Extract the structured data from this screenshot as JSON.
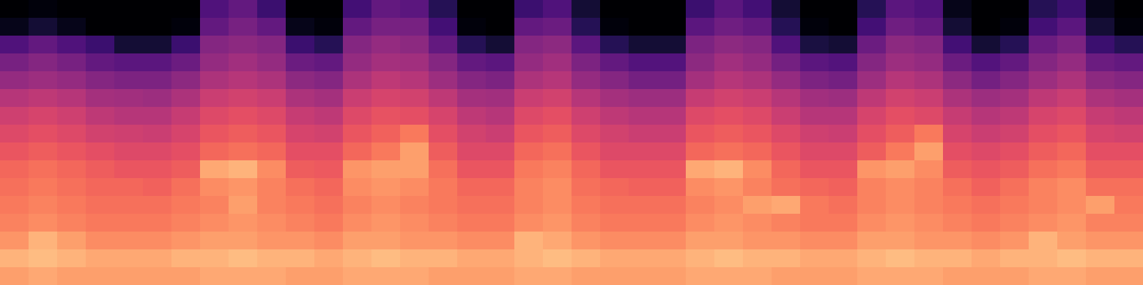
{
  "chart_data": {
    "type": "heatmap",
    "color": "magma",
    "tick_labels": false,
    "color_range": [
      0,
      1
    ],
    "cells": [
      [
        0,
        0.02,
        0,
        0,
        0,
        0,
        0,
        0.25,
        0.3,
        0.2,
        0,
        0,
        0.22,
        0.3,
        0.28,
        0.15,
        0,
        0,
        0.2,
        0.25,
        0.1,
        0,
        0,
        0,
        0.2,
        0.28,
        0.22,
        0.1,
        0,
        0,
        0.15,
        0.28,
        0.25,
        0.05,
        0,
        0,
        0.15,
        0.2,
        0.05,
        0
      ],
      [
        0.05,
        0.1,
        0.05,
        0,
        0,
        0,
        0.02,
        0.3,
        0.35,
        0.3,
        0.05,
        0.02,
        0.3,
        0.35,
        0.35,
        0.22,
        0.02,
        0,
        0.3,
        0.32,
        0.15,
        0.02,
        0,
        0,
        0.28,
        0.33,
        0.3,
        0.15,
        0.02,
        0,
        0.22,
        0.33,
        0.3,
        0.1,
        0,
        0.02,
        0.22,
        0.28,
        0.1,
        0.02
      ],
      [
        0.25,
        0.3,
        0.25,
        0.2,
        0.1,
        0.1,
        0.2,
        0.38,
        0.4,
        0.38,
        0.2,
        0.15,
        0.38,
        0.42,
        0.4,
        0.3,
        0.15,
        0.1,
        0.38,
        0.4,
        0.28,
        0.15,
        0.1,
        0.1,
        0.36,
        0.4,
        0.38,
        0.25,
        0.12,
        0.1,
        0.32,
        0.4,
        0.38,
        0.22,
        0.1,
        0.15,
        0.32,
        0.36,
        0.2,
        0.15
      ],
      [
        0.35,
        0.38,
        0.35,
        0.3,
        0.28,
        0.28,
        0.32,
        0.42,
        0.45,
        0.42,
        0.32,
        0.3,
        0.42,
        0.46,
        0.45,
        0.38,
        0.3,
        0.28,
        0.42,
        0.45,
        0.36,
        0.3,
        0.26,
        0.26,
        0.4,
        0.45,
        0.42,
        0.34,
        0.28,
        0.26,
        0.38,
        0.44,
        0.42,
        0.32,
        0.26,
        0.3,
        0.38,
        0.42,
        0.32,
        0.3
      ],
      [
        0.42,
        0.44,
        0.42,
        0.38,
        0.36,
        0.36,
        0.4,
        0.48,
        0.5,
        0.48,
        0.4,
        0.38,
        0.48,
        0.52,
        0.5,
        0.44,
        0.38,
        0.36,
        0.48,
        0.5,
        0.42,
        0.38,
        0.34,
        0.34,
        0.46,
        0.5,
        0.48,
        0.42,
        0.36,
        0.34,
        0.44,
        0.5,
        0.48,
        0.4,
        0.34,
        0.38,
        0.44,
        0.48,
        0.4,
        0.38
      ],
      [
        0.5,
        0.52,
        0.5,
        0.46,
        0.45,
        0.44,
        0.48,
        0.55,
        0.57,
        0.55,
        0.48,
        0.46,
        0.55,
        0.58,
        0.57,
        0.52,
        0.46,
        0.45,
        0.55,
        0.57,
        0.5,
        0.46,
        0.44,
        0.44,
        0.54,
        0.57,
        0.55,
        0.5,
        0.45,
        0.44,
        0.52,
        0.57,
        0.55,
        0.48,
        0.44,
        0.46,
        0.52,
        0.55,
        0.48,
        0.46
      ],
      [
        0.56,
        0.58,
        0.56,
        0.52,
        0.5,
        0.5,
        0.54,
        0.6,
        0.62,
        0.6,
        0.54,
        0.52,
        0.6,
        0.63,
        0.62,
        0.58,
        0.52,
        0.5,
        0.6,
        0.62,
        0.56,
        0.52,
        0.5,
        0.5,
        0.6,
        0.62,
        0.6,
        0.55,
        0.5,
        0.5,
        0.58,
        0.62,
        0.6,
        0.54,
        0.5,
        0.52,
        0.58,
        0.6,
        0.54,
        0.52
      ],
      [
        0.6,
        0.62,
        0.6,
        0.57,
        0.56,
        0.55,
        0.58,
        0.64,
        0.66,
        0.64,
        0.58,
        0.57,
        0.64,
        0.67,
        0.72,
        0.62,
        0.57,
        0.55,
        0.64,
        0.66,
        0.6,
        0.57,
        0.55,
        0.55,
        0.64,
        0.66,
        0.64,
        0.6,
        0.56,
        0.55,
        0.62,
        0.66,
        0.72,
        0.58,
        0.55,
        0.57,
        0.62,
        0.64,
        0.58,
        0.57
      ],
      [
        0.64,
        0.66,
        0.64,
        0.62,
        0.6,
        0.6,
        0.62,
        0.68,
        0.7,
        0.68,
        0.62,
        0.62,
        0.68,
        0.72,
        0.8,
        0.66,
        0.6,
        0.6,
        0.68,
        0.7,
        0.64,
        0.6,
        0.6,
        0.6,
        0.68,
        0.7,
        0.68,
        0.64,
        0.6,
        0.6,
        0.66,
        0.72,
        0.8,
        0.62,
        0.6,
        0.62,
        0.66,
        0.68,
        0.62,
        0.62
      ],
      [
        0.68,
        0.7,
        0.68,
        0.66,
        0.64,
        0.64,
        0.66,
        0.82,
        0.84,
        0.76,
        0.66,
        0.65,
        0.78,
        0.8,
        0.8,
        0.7,
        0.64,
        0.64,
        0.72,
        0.74,
        0.68,
        0.64,
        0.64,
        0.64,
        0.82,
        0.84,
        0.76,
        0.68,
        0.64,
        0.64,
        0.78,
        0.8,
        0.76,
        0.66,
        0.64,
        0.66,
        0.7,
        0.72,
        0.66,
        0.66
      ],
      [
        0.7,
        0.72,
        0.7,
        0.68,
        0.68,
        0.67,
        0.7,
        0.76,
        0.78,
        0.74,
        0.7,
        0.68,
        0.76,
        0.78,
        0.76,
        0.72,
        0.68,
        0.68,
        0.74,
        0.76,
        0.7,
        0.68,
        0.67,
        0.67,
        0.76,
        0.78,
        0.74,
        0.7,
        0.68,
        0.67,
        0.74,
        0.76,
        0.74,
        0.7,
        0.67,
        0.7,
        0.74,
        0.76,
        0.7,
        0.7
      ],
      [
        0.72,
        0.74,
        0.72,
        0.7,
        0.7,
        0.7,
        0.72,
        0.74,
        0.8,
        0.74,
        0.72,
        0.7,
        0.74,
        0.76,
        0.74,
        0.72,
        0.7,
        0.7,
        0.74,
        0.76,
        0.72,
        0.7,
        0.7,
        0.7,
        0.74,
        0.76,
        0.8,
        0.82,
        0.72,
        0.7,
        0.74,
        0.76,
        0.74,
        0.72,
        0.7,
        0.72,
        0.74,
        0.76,
        0.8,
        0.72
      ],
      [
        0.74,
        0.76,
        0.74,
        0.72,
        0.72,
        0.72,
        0.74,
        0.76,
        0.78,
        0.76,
        0.74,
        0.72,
        0.76,
        0.78,
        0.76,
        0.74,
        0.72,
        0.72,
        0.76,
        0.78,
        0.74,
        0.72,
        0.72,
        0.72,
        0.76,
        0.78,
        0.76,
        0.74,
        0.72,
        0.72,
        0.76,
        0.78,
        0.76,
        0.74,
        0.72,
        0.74,
        0.76,
        0.78,
        0.74,
        0.74
      ],
      [
        0.78,
        0.84,
        0.8,
        0.76,
        0.76,
        0.76,
        0.78,
        0.8,
        0.8,
        0.78,
        0.78,
        0.76,
        0.8,
        0.8,
        0.78,
        0.78,
        0.76,
        0.76,
        0.84,
        0.82,
        0.78,
        0.76,
        0.76,
        0.76,
        0.8,
        0.8,
        0.78,
        0.78,
        0.76,
        0.76,
        0.8,
        0.8,
        0.78,
        0.78,
        0.76,
        0.78,
        0.84,
        0.8,
        0.78,
        0.78
      ],
      [
        0.84,
        0.86,
        0.84,
        0.82,
        0.82,
        0.82,
        0.84,
        0.84,
        0.86,
        0.84,
        0.84,
        0.82,
        0.84,
        0.86,
        0.84,
        0.84,
        0.82,
        0.82,
        0.84,
        0.86,
        0.84,
        0.82,
        0.82,
        0.82,
        0.84,
        0.86,
        0.84,
        0.84,
        0.82,
        0.82,
        0.84,
        0.86,
        0.84,
        0.84,
        0.82,
        0.84,
        0.84,
        0.86,
        0.84,
        0.84
      ],
      [
        0.8,
        0.82,
        0.8,
        0.8,
        0.8,
        0.8,
        0.8,
        0.82,
        0.82,
        0.82,
        0.8,
        0.8,
        0.82,
        0.82,
        0.82,
        0.8,
        0.8,
        0.8,
        0.82,
        0.82,
        0.8,
        0.8,
        0.8,
        0.8,
        0.82,
        0.82,
        0.82,
        0.8,
        0.8,
        0.8,
        0.82,
        0.82,
        0.82,
        0.8,
        0.8,
        0.8,
        0.82,
        0.82,
        0.8,
        0.8
      ]
    ]
  }
}
